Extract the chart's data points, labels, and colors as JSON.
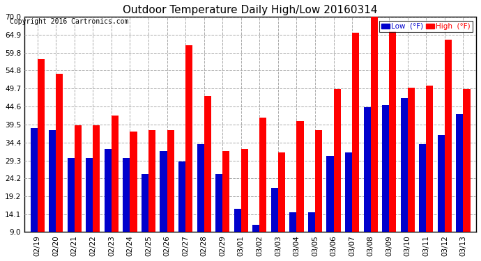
{
  "title": "Outdoor Temperature Daily High/Low 20160314",
  "copyright": "Copyright 2016 Cartronics.com",
  "dates": [
    "02/19",
    "02/20",
    "02/21",
    "02/22",
    "02/23",
    "02/24",
    "02/25",
    "02/26",
    "02/27",
    "02/28",
    "02/29",
    "03/01",
    "03/02",
    "03/03",
    "03/04",
    "03/05",
    "03/06",
    "03/07",
    "03/08",
    "03/09",
    "03/10",
    "03/11",
    "03/12",
    "03/13"
  ],
  "highs": [
    58.0,
    54.0,
    39.2,
    39.2,
    42.0,
    37.5,
    38.0,
    38.0,
    62.0,
    47.5,
    32.0,
    32.5,
    41.5,
    31.5,
    40.5,
    38.0,
    49.5,
    65.5,
    70.5,
    66.0,
    50.0,
    50.5,
    63.5,
    49.5
  ],
  "lows": [
    38.5,
    38.0,
    30.0,
    30.0,
    32.5,
    30.0,
    25.5,
    32.0,
    29.0,
    34.0,
    25.5,
    15.5,
    11.0,
    21.5,
    14.5,
    14.5,
    30.5,
    31.5,
    44.5,
    45.0,
    47.0,
    34.0,
    36.5,
    42.5
  ],
  "high_color": "#ff0000",
  "low_color": "#0000cc",
  "bg_color": "#ffffff",
  "plot_bg_color": "#ffffff",
  "grid_color": "#aaaaaa",
  "ylim_min": 9.0,
  "ylim_max": 70.0,
  "yticks": [
    9.0,
    14.1,
    19.2,
    24.2,
    29.3,
    34.4,
    39.5,
    44.6,
    49.7,
    54.8,
    59.8,
    64.9,
    70.0
  ],
  "title_fontsize": 11,
  "copyright_fontsize": 7,
  "legend_labels": [
    "Low  (°F)",
    "High  (°F)"
  ],
  "bar_width": 0.38
}
